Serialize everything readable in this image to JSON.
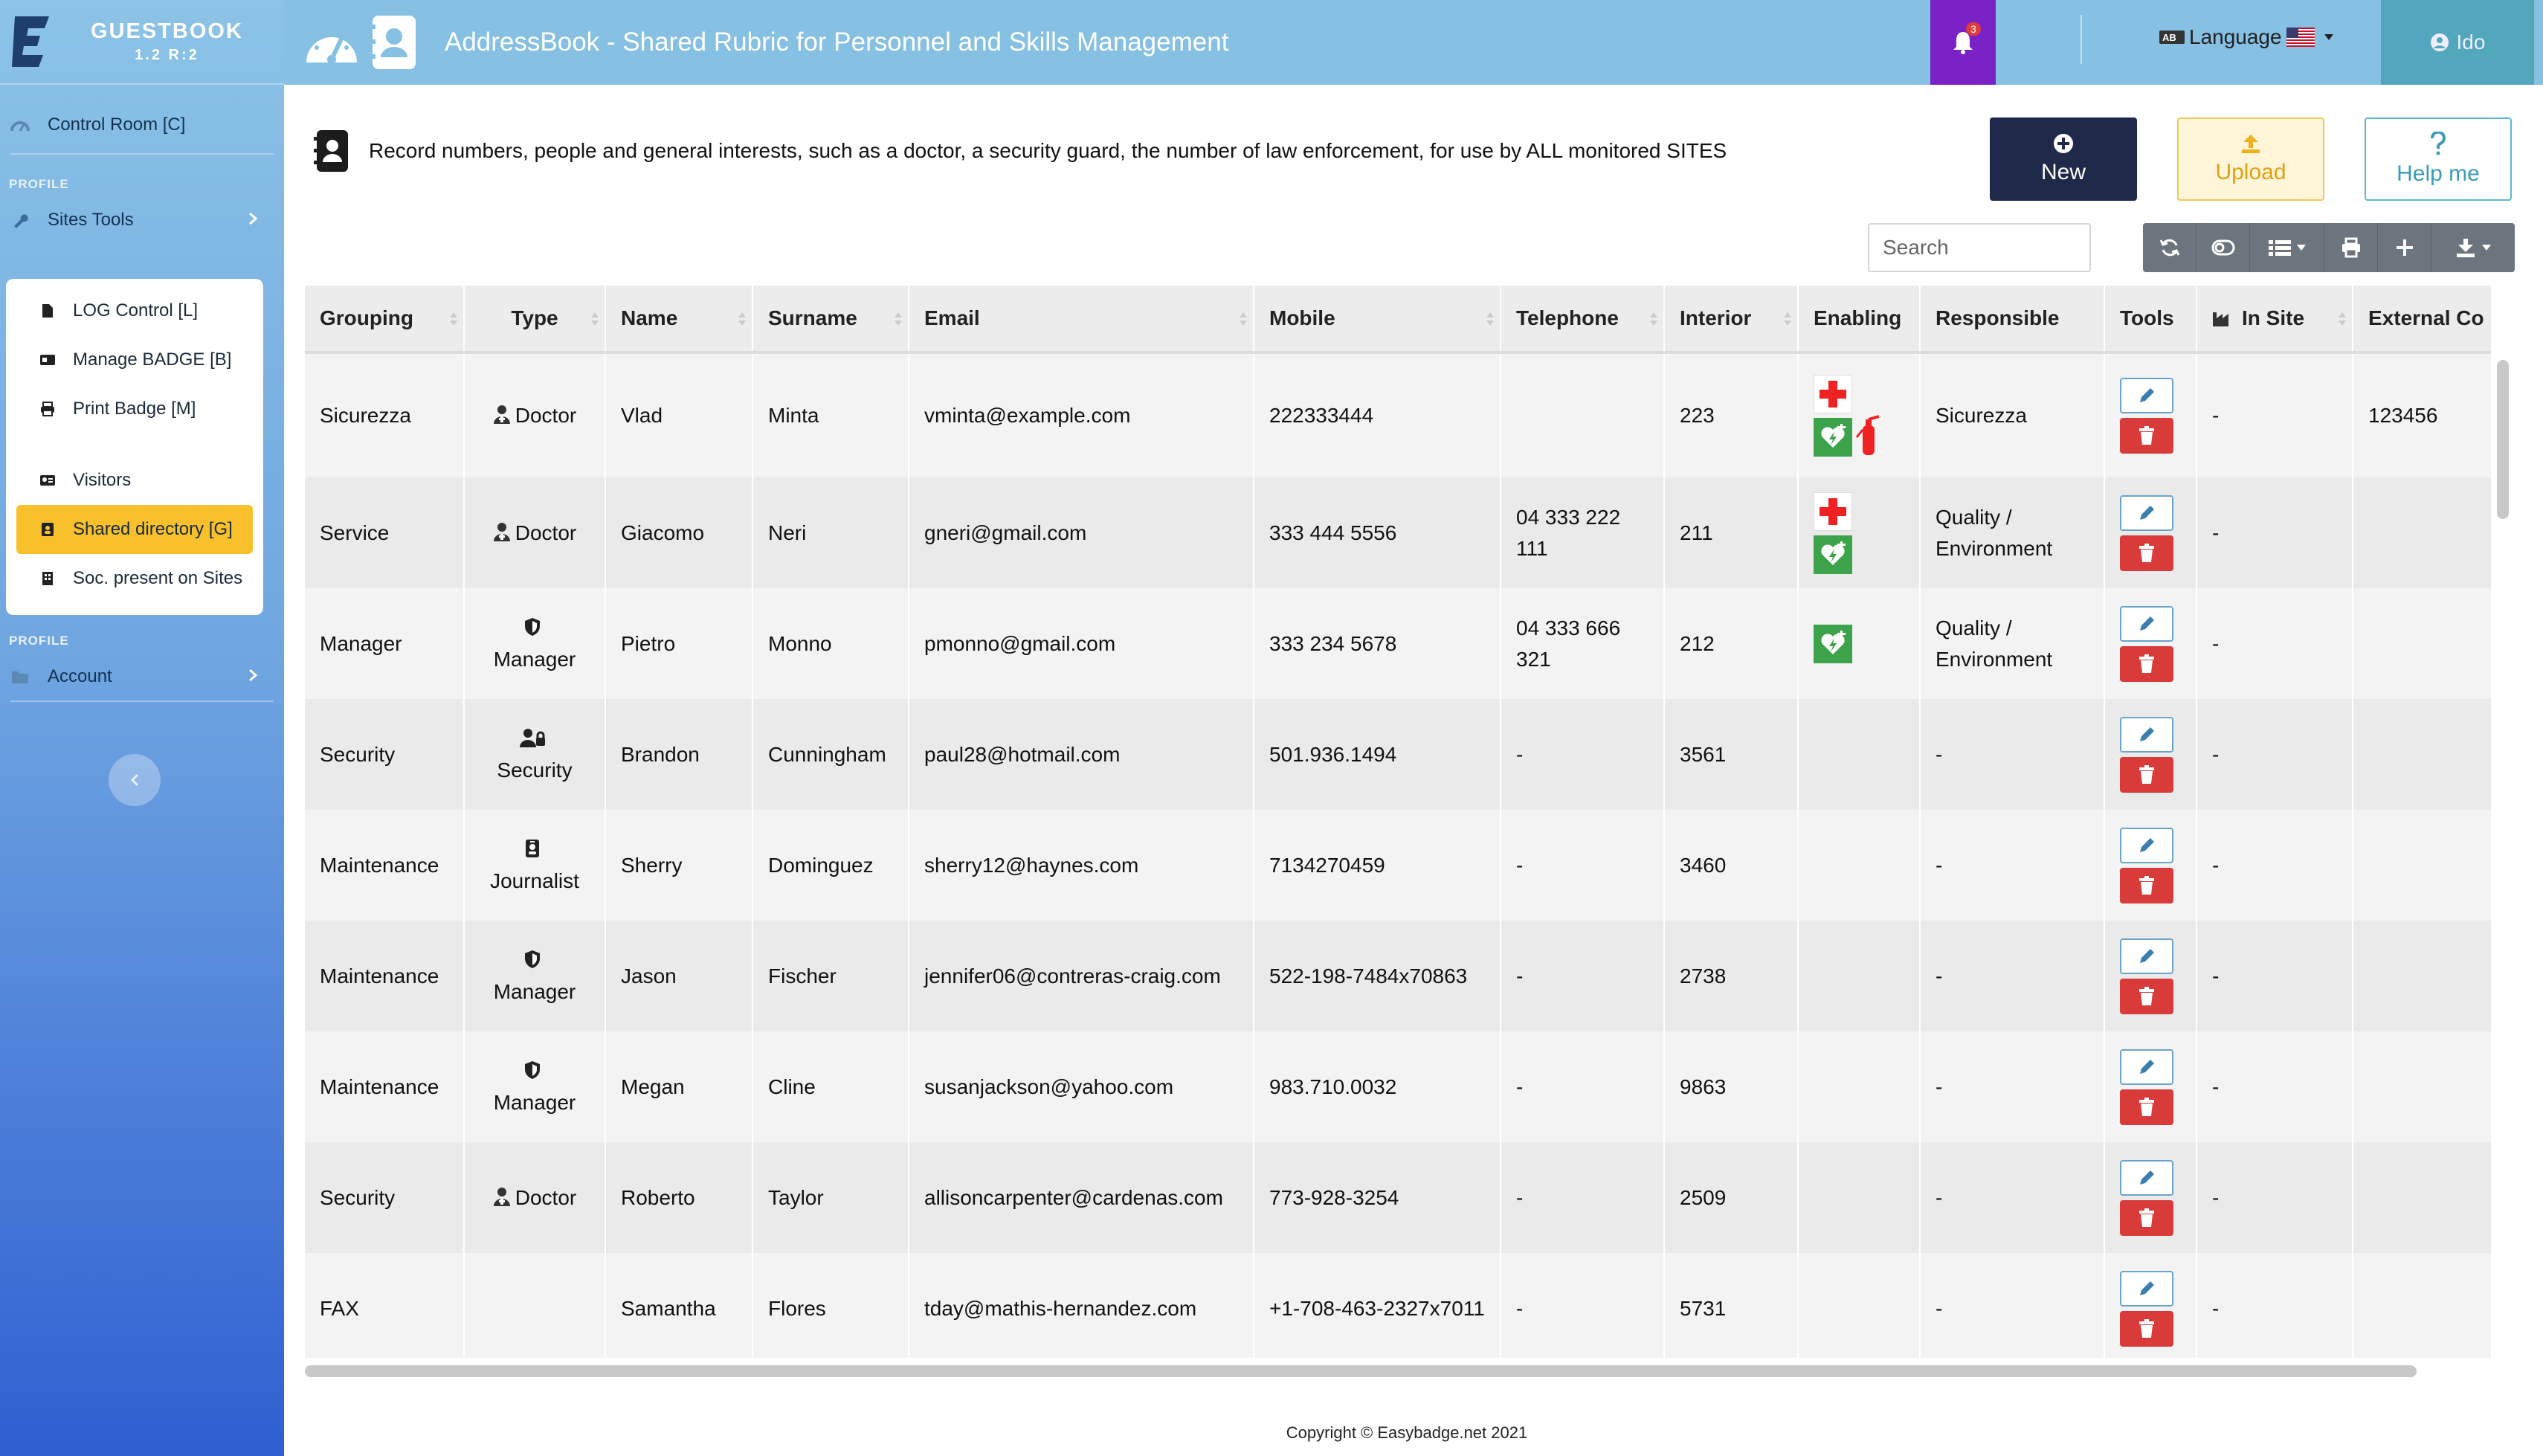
{
  "brand": {
    "title": "GUESTBOOK",
    "version": "1.2 R:2"
  },
  "sidebar": {
    "control_room": "Control Room [C]",
    "section1": "PROFILE",
    "sites_tools": "Sites Tools",
    "submenu": [
      {
        "label": "LOG Control [L]",
        "icon": "file-icon"
      },
      {
        "label": "Manage BADGE [B]",
        "icon": "id-card-icon"
      },
      {
        "label": "Print Badge [M]",
        "icon": "printer-icon"
      },
      {
        "label": "Visitors",
        "icon": "address-card-icon"
      },
      {
        "label": "Shared directory [G]",
        "icon": "address-book-icon",
        "active": true
      },
      {
        "label": "Soc. present on Sites",
        "icon": "building-icon"
      }
    ],
    "section2": "PROFILE",
    "account": "Account"
  },
  "topbar": {
    "title": "AddressBook - Shared Rubric for Personnel and Skills Management",
    "notifications": "3",
    "language": "Language",
    "user": "Ido"
  },
  "intro": "Record numbers, people and general interests, such as a doctor, a security guard, the number of law enforcement, for use by ALL monitored SITES",
  "buttons": {
    "new": "New",
    "upload": "Upload",
    "help": "Help me"
  },
  "search": {
    "placeholder": "Search"
  },
  "table": {
    "columns": [
      "Grouping",
      "Type",
      "Name",
      "Surname",
      "Email",
      "Mobile",
      "Telephone",
      "Interior",
      "Enabling",
      "Responsible",
      "Tools",
      "In Site",
      "External Co"
    ],
    "rows": [
      {
        "grouping": "Sicurezza",
        "type": "Doctor",
        "name": "Vlad",
        "surname": "Minta",
        "email": "vminta@example.com",
        "mobile": "222333444",
        "telephone": "",
        "interior": "223",
        "responsible": "Sicurezza",
        "in_site": "-",
        "external": "123456"
      },
      {
        "grouping": "Service",
        "type": "Doctor",
        "name": "Giacomo",
        "surname": "Neri",
        "email": "gneri@gmail.com",
        "mobile": "333 444 5556",
        "telephone": "04 333 222 111",
        "interior": "211",
        "responsible": "Quality / Environment",
        "in_site": "-",
        "external": ""
      },
      {
        "grouping": "Manager",
        "type": "Manager",
        "name": "Pietro",
        "surname": "Monno",
        "email": "pmonno@gmail.com",
        "mobile": "333 234 5678",
        "telephone": "04 333 666 321",
        "interior": "212",
        "responsible": "Quality / Environment",
        "in_site": "-",
        "external": ""
      },
      {
        "grouping": "Security",
        "type": "Security",
        "name": "Brandon",
        "surname": "Cunningham",
        "email": "paul28@hotmail.com",
        "mobile": "501.936.1494",
        "telephone": "-",
        "interior": "3561",
        "responsible": "-",
        "in_site": "-",
        "external": ""
      },
      {
        "grouping": "Maintenance",
        "type": "Journalist",
        "name": "Sherry",
        "surname": "Dominguez",
        "email": "sherry12@haynes.com",
        "mobile": "7134270459",
        "telephone": "-",
        "interior": "3460",
        "responsible": "-",
        "in_site": "-",
        "external": ""
      },
      {
        "grouping": "Maintenance",
        "type": "Manager",
        "name": "Jason",
        "surname": "Fischer",
        "email": "jennifer06@contreras-craig.com",
        "mobile": "522-198-7484x70863",
        "telephone": "-",
        "interior": "2738",
        "responsible": "-",
        "in_site": "-",
        "external": ""
      },
      {
        "grouping": "Maintenance",
        "type": "Manager",
        "name": "Megan",
        "surname": "Cline",
        "email": "susanjackson@yahoo.com",
        "mobile": "983.710.0032",
        "telephone": "-",
        "interior": "9863",
        "responsible": "-",
        "in_site": "-",
        "external": ""
      },
      {
        "grouping": "Security",
        "type": "Doctor",
        "name": "Roberto",
        "surname": "Taylor",
        "email": "allisoncarpenter@cardenas.com",
        "mobile": "773-928-3254",
        "telephone": "-",
        "interior": "2509",
        "responsible": "-",
        "in_site": "-",
        "external": ""
      },
      {
        "grouping": "FAX",
        "type": "",
        "name": "Samantha",
        "surname": "Flores",
        "email": "tday@mathis-hernandez.com",
        "mobile": "+1-708-463-2327x7011",
        "telephone": "-",
        "interior": "5731",
        "responsible": "-",
        "in_site": "-",
        "external": ""
      }
    ]
  },
  "footer": "Copyright © Easybadge.net 2021",
  "colors": {
    "topbar": "#86c0e3",
    "new_button": "#1f2a4a",
    "active_item": "#f8c12c",
    "delete": "#d93a3a",
    "notification": "#7b22c7"
  }
}
